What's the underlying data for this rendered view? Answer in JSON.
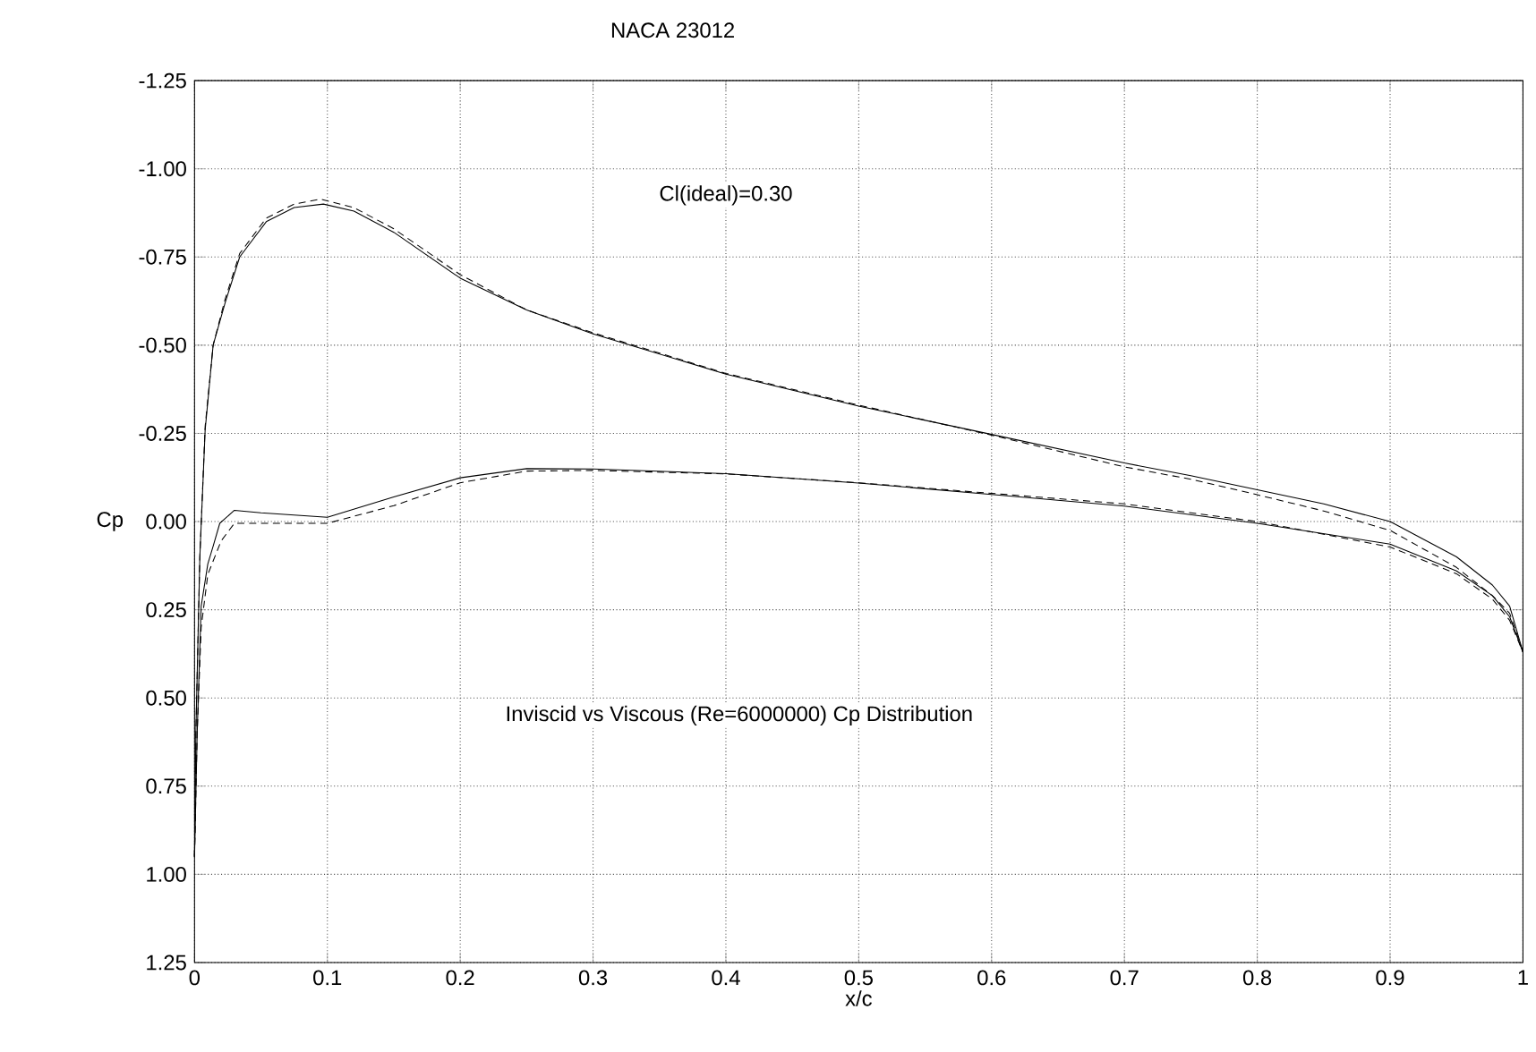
{
  "chart_data": {
    "type": "line",
    "title": "NACA 23012",
    "xlabel": "x/c",
    "ylabel": "Cp",
    "annotations": [
      "Cl(ideal)=0.30",
      "Inviscid vs Viscous (Re=6000000) Cp Distribution"
    ],
    "xlim": [
      0,
      1
    ],
    "ylim": [
      1.25,
      -1.25
    ],
    "xticks": [
      0,
      0.1,
      0.2,
      0.3,
      0.4,
      0.5,
      0.6,
      0.7,
      0.8,
      0.9,
      1
    ],
    "yticks": [
      {
        "value": -1.25,
        "label": "-1.25"
      },
      {
        "value": -1.0,
        "label": "-1.00"
      },
      {
        "value": -0.75,
        "label": "-0.75"
      },
      {
        "value": -0.5,
        "label": "-0.50"
      },
      {
        "value": -0.25,
        "label": "-0.25"
      },
      {
        "value": 0,
        "label": "0.00"
      },
      {
        "value": 0.25,
        "label": "0.25"
      },
      {
        "value": 0.5,
        "label": "0.50"
      },
      {
        "value": 0.75,
        "label": "0.75"
      },
      {
        "value": 1.0,
        "label": "1.00"
      },
      {
        "value": 1.25,
        "label": "1.25"
      }
    ],
    "grid": true,
    "series": [
      {
        "color": "#000000",
        "line_style": "solid",
        "x": [
          0.0,
          0.001,
          0.004,
          0.008,
          0.014,
          0.023,
          0.034,
          0.054,
          0.075,
          0.097,
          0.12,
          0.15,
          0.2,
          0.25,
          0.3,
          0.4,
          0.5,
          0.6,
          0.7,
          0.75,
          0.8,
          0.85,
          0.9,
          0.95,
          0.977,
          0.99,
          1.0
        ],
        "values": [
          0.95,
          0.6,
          0.1,
          -0.26,
          -0.5,
          -0.62,
          -0.75,
          -0.85,
          -0.89,
          -0.9,
          -0.88,
          -0.82,
          -0.69,
          -0.6,
          -0.532,
          -0.418,
          -0.327,
          -0.247,
          -0.166,
          -0.13,
          -0.09,
          -0.05,
          0.0,
          0.1,
          0.18,
          0.24,
          0.37
        ]
      },
      {
        "color": "#000000",
        "line_style": "solid",
        "x": [
          0.0,
          0.002,
          0.005,
          0.01,
          0.014,
          0.019,
          0.03,
          0.05,
          0.1,
          0.15,
          0.2,
          0.25,
          0.3,
          0.4,
          0.5,
          0.6,
          0.7,
          0.8,
          0.9,
          0.95,
          0.977,
          0.99,
          1.0
        ],
        "values": [
          0.95,
          0.6,
          0.24,
          0.12,
          0.07,
          0.005,
          -0.032,
          -0.025,
          -0.012,
          -0.07,
          -0.124,
          -0.15,
          -0.149,
          -0.136,
          -0.109,
          -0.077,
          -0.044,
          0.005,
          0.064,
          0.14,
          0.21,
          0.27,
          0.37
        ]
      },
      {
        "color": "#000000",
        "line_style": "dashed",
        "x": [
          0.0,
          0.001,
          0.004,
          0.008,
          0.014,
          0.023,
          0.034,
          0.054,
          0.075,
          0.095,
          0.12,
          0.15,
          0.2,
          0.25,
          0.3,
          0.4,
          0.5,
          0.6,
          0.7,
          0.75,
          0.8,
          0.85,
          0.9,
          0.95,
          0.977,
          0.99,
          1.0
        ],
        "values": [
          0.95,
          0.6,
          0.1,
          -0.27,
          -0.5,
          -0.63,
          -0.76,
          -0.86,
          -0.9,
          -0.914,
          -0.89,
          -0.83,
          -0.7,
          -0.6,
          -0.535,
          -0.42,
          -0.33,
          -0.245,
          -0.155,
          -0.12,
          -0.076,
          -0.03,
          0.025,
          0.13,
          0.21,
          0.26,
          0.37
        ]
      },
      {
        "color": "#000000",
        "line_style": "dashed",
        "x": [
          0.0,
          0.002,
          0.005,
          0.01,
          0.02,
          0.03,
          0.05,
          0.1,
          0.15,
          0.2,
          0.25,
          0.3,
          0.4,
          0.5,
          0.6,
          0.7,
          0.8,
          0.9,
          0.95,
          0.977,
          0.99,
          1.0
        ],
        "values": [
          0.95,
          0.6,
          0.3,
          0.15,
          0.055,
          0.005,
          0.005,
          0.005,
          -0.045,
          -0.11,
          -0.143,
          -0.145,
          -0.135,
          -0.11,
          -0.08,
          -0.05,
          0.0,
          0.072,
          0.148,
          0.22,
          0.28,
          0.37
        ]
      }
    ]
  }
}
